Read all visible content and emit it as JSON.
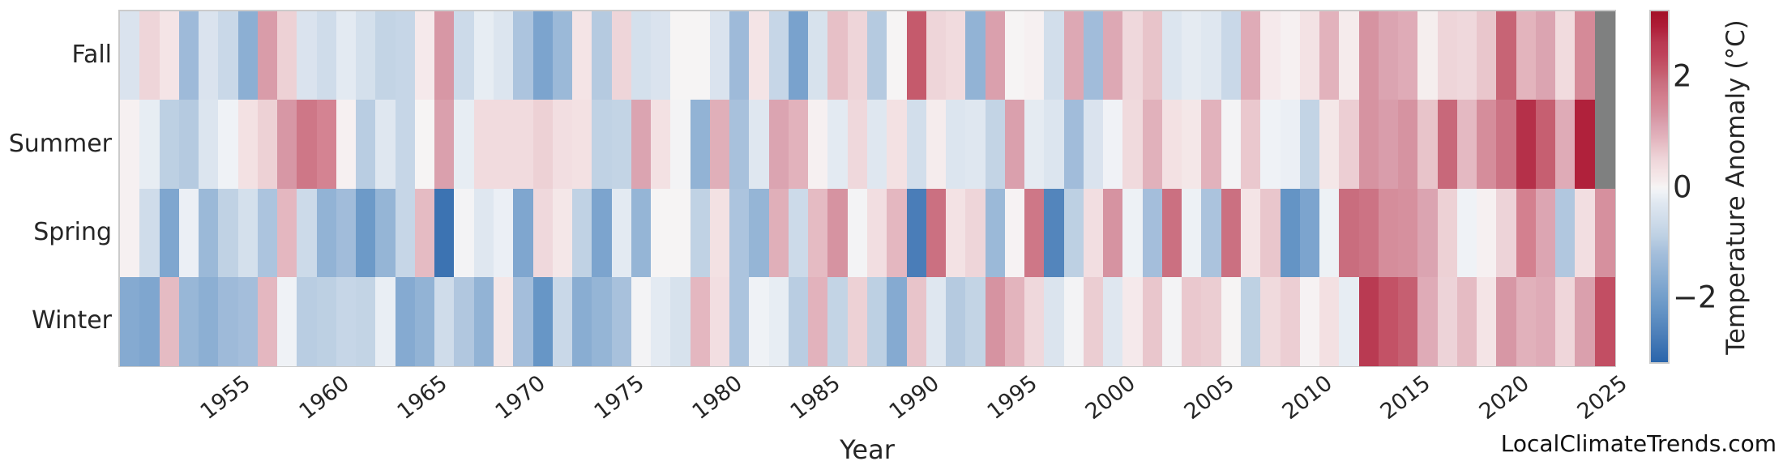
{
  "chart_data": {
    "type": "heatmap",
    "xlabel": "Year",
    "colorbar_label": "Temperature Anomaly (°C)",
    "watermark": "LocalClimateTrends.com",
    "rows": [
      "Fall",
      "Summer",
      "Spring",
      "Winter"
    ],
    "year_range": [
      1950,
      2025
    ],
    "x_tick_labels": [
      "1955",
      "1960",
      "1965",
      "1970",
      "1975",
      "1980",
      "1985",
      "1990",
      "1995",
      "2000",
      "2005",
      "2010",
      "2015",
      "2020",
      "2025"
    ],
    "x_tick_years": [
      1955,
      1960,
      1965,
      1970,
      1975,
      1980,
      1985,
      1990,
      1995,
      2000,
      2005,
      2010,
      2015,
      2020,
      2025
    ],
    "colorbar_ticks": [
      {
        "label": "2",
        "value": 2
      },
      {
        "label": "0",
        "value": 0
      },
      {
        "label": "−2",
        "value": -2
      }
    ],
    "vmin": -3.17,
    "vmax": 3.17,
    "missing_color": "#7f8080",
    "colormap_anchors": [
      [
        -3.17,
        "#2a65ab"
      ],
      [
        -2.7,
        "#4a7db8"
      ],
      [
        -2.2,
        "#6796c6"
      ],
      [
        -1.8,
        "#7fa6cf"
      ],
      [
        -1.5,
        "#92b3d5"
      ],
      [
        -1.2,
        "#a4bedb"
      ],
      [
        -0.9,
        "#bdd0e3"
      ],
      [
        -0.6,
        "#cfdcea"
      ],
      [
        -0.3,
        "#dfe7f0"
      ],
      [
        -0.1,
        "#eff2f6"
      ],
      [
        0.0,
        "#f6f4f4"
      ],
      [
        0.1,
        "#f5eced"
      ],
      [
        0.3,
        "#f3e1e3"
      ],
      [
        0.5,
        "#eed5d9"
      ],
      [
        0.7,
        "#e8c4ca"
      ],
      [
        0.9,
        "#e2b2bc"
      ],
      [
        1.1,
        "#dba4b1"
      ],
      [
        1.3,
        "#d693a1"
      ],
      [
        1.6,
        "#d3808f"
      ],
      [
        1.9,
        "#c96d7e"
      ],
      [
        2.1,
        "#c55a6c"
      ],
      [
        2.4,
        "#be425a"
      ],
      [
        2.6,
        "#b93a52"
      ],
      [
        2.9,
        "#ae1c37"
      ],
      [
        3.17,
        "#a31127"
      ]
    ],
    "values": {
      "Fall": [
        -0.4,
        0.5,
        0.25,
        -1.3,
        -0.4,
        -0.7,
        -1.6,
        1.2,
        0.55,
        -0.4,
        -0.6,
        -0.25,
        -0.5,
        -0.8,
        -0.75,
        0.15,
        1.25,
        -0.65,
        -0.2,
        -0.35,
        -1.1,
        -1.85,
        -1.35,
        0.25,
        -1.0,
        0.5,
        -0.5,
        -0.4,
        0.0,
        0.0,
        -0.4,
        -1.3,
        0.25,
        -0.75,
        -1.9,
        -0.45,
        0.75,
        0.5,
        -1.0,
        0.0,
        2.1,
        0.5,
        0.4,
        -1.5,
        1.15,
        0.0,
        0.05,
        -0.55,
        1.05,
        -1.25,
        1.05,
        0.45,
        0.7,
        -0.35,
        -0.22,
        -0.3,
        -0.7,
        1.0,
        0.15,
        0.05,
        0.28,
        0.9,
        0.12,
        1.3,
        1.1,
        1.0,
        0.08,
        0.5,
        0.45,
        0.68,
        2.0,
        0.88,
        1.1,
        0.4,
        1.45,
        null
      ],
      "Summer": [
        0.05,
        -0.2,
        -0.9,
        -1.0,
        -0.35,
        -0.1,
        0.3,
        0.55,
        1.25,
        1.75,
        1.55,
        0.05,
        -0.95,
        -0.3,
        -0.75,
        0.0,
        1.15,
        -0.2,
        0.4,
        0.4,
        0.4,
        0.55,
        0.35,
        0.3,
        -0.85,
        -0.8,
        1.1,
        0.3,
        -0.05,
        -1.5,
        0.95,
        -1.15,
        -0.3,
        1.1,
        0.9,
        0.05,
        -0.25,
        0.45,
        -0.3,
        0.3,
        -0.55,
        0.1,
        -0.35,
        -0.3,
        -0.8,
        1.15,
        -0.22,
        -0.35,
        -1.25,
        -0.4,
        -0.08,
        0.42,
        0.92,
        0.3,
        0.2,
        0.9,
        -0.05,
        0.65,
        -0.1,
        -0.15,
        -0.8,
        0.2,
        0.58,
        1.3,
        1.18,
        1.3,
        0.7,
        1.95,
        0.82,
        1.4,
        1.8,
        2.7,
        2.05,
        1.0,
        2.85,
        null
      ],
      "Spring": [
        0.05,
        -0.6,
        -1.8,
        -0.15,
        -1.35,
        -0.85,
        -0.5,
        -1.1,
        0.85,
        -0.65,
        -1.5,
        -1.25,
        -2.1,
        -1.45,
        -0.75,
        0.8,
        -2.9,
        -0.05,
        -0.3,
        -0.15,
        -1.8,
        0.45,
        0.2,
        -0.85,
        -1.85,
        -0.25,
        -1.45,
        0.0,
        0.0,
        -0.85,
        0.3,
        -1.1,
        -1.45,
        0.95,
        -0.65,
        0.8,
        1.3,
        -0.05,
        0.35,
        0.85,
        -2.7,
        1.85,
        0.28,
        0.5,
        -1.35,
        0.02,
        1.75,
        -2.55,
        -0.9,
        0.35,
        1.3,
        -0.12,
        -1.2,
        1.85,
        -0.12,
        -1.12,
        1.85,
        0.25,
        0.68,
        -2.25,
        -1.85,
        -0.12,
        1.9,
        1.8,
        1.4,
        1.35,
        1.1,
        0.55,
        -0.1,
        0.05,
        0.52,
        1.6,
        1.08,
        -1.05,
        0.35,
        1.35
      ],
      "Winter": [
        -1.7,
        -1.8,
        0.8,
        -1.4,
        -1.6,
        -1.3,
        -1.2,
        0.85,
        -0.1,
        -0.95,
        -0.9,
        -0.75,
        -0.8,
        -0.18,
        -1.7,
        -1.5,
        -0.6,
        -1.05,
        -1.5,
        0.2,
        -1.2,
        -2.2,
        -0.7,
        -1.65,
        -1.45,
        -1.15,
        -0.05,
        -0.25,
        -0.45,
        0.85,
        0.35,
        -1.1,
        -0.1,
        -0.2,
        -0.95,
        0.9,
        -0.8,
        0.55,
        -0.9,
        -1.7,
        0.7,
        -0.3,
        -1.0,
        -0.8,
        1.3,
        0.88,
        0.45,
        -0.38,
        -0.05,
        0.6,
        -0.3,
        0.15,
        0.68,
        -0.05,
        0.65,
        0.6,
        0.0,
        -0.88,
        0.42,
        0.58,
        0.02,
        0.32,
        -0.2,
        2.6,
        2.2,
        2.05,
        1.0,
        0.52,
        0.8,
        0.25,
        1.25,
        0.92,
        1.0,
        0.48,
        1.15,
        2.25
      ]
    }
  }
}
